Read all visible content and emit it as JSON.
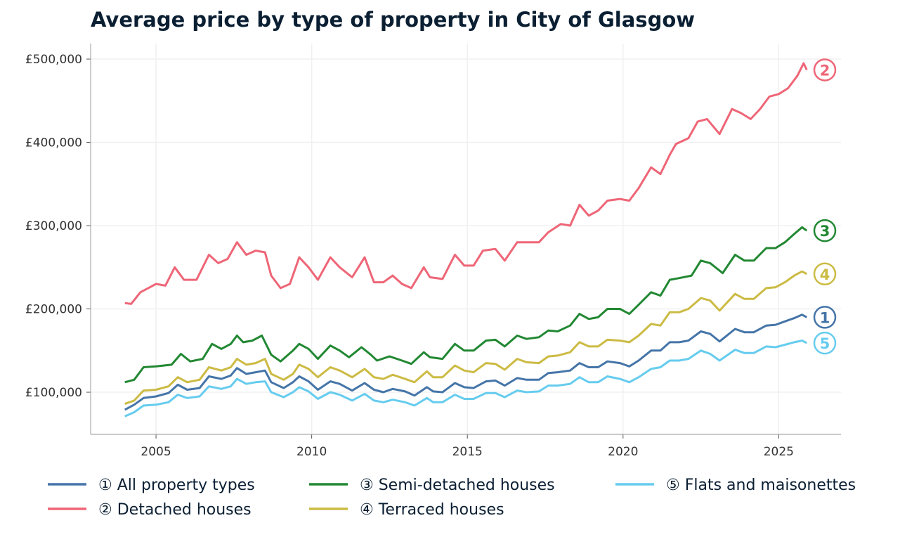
{
  "chart_data": {
    "type": "line",
    "title": "Average price by type of property in City of Glasgow",
    "xlabel": "",
    "ylabel": "",
    "xlim": [
      2002.9,
      2027.0
    ],
    "ylim": [
      49400,
      518600
    ],
    "x_ticks": [
      2005,
      2010,
      2015,
      2020,
      2025
    ],
    "x_tick_labels": [
      "2005",
      "2010",
      "2015",
      "2020",
      "2025"
    ],
    "y_ticks": [
      100000,
      200000,
      300000,
      400000,
      500000
    ],
    "y_tick_labels": [
      "£100,000",
      "£200,000",
      "£300,000",
      "£400,000",
      "£500,000"
    ],
    "grid": true,
    "legend_position": "bottom",
    "series": [
      {
        "name": "① All property types",
        "end_label": "1",
        "color": "#4575a8",
        "x": [
          2004,
          2004.3,
          2004.6,
          2005,
          2005.4,
          2005.7,
          2006,
          2006.4,
          2006.7,
          2007.1,
          2007.4,
          2007.6,
          2007.9,
          2008.2,
          2008.5,
          2008.7,
          2009.1,
          2009.4,
          2009.6,
          2009.9,
          2010.2,
          2010.6,
          2010.9,
          2011.3,
          2011.7,
          2012,
          2012.3,
          2012.6,
          2013,
          2013.3,
          2013.7,
          2013.9,
          2014.2,
          2014.6,
          2014.9,
          2015.2,
          2015.6,
          2015.9,
          2016.2,
          2016.6,
          2016.9,
          2017.3,
          2017.6,
          2017.9,
          2018.3,
          2018.6,
          2018.9,
          2019.2,
          2019.5,
          2019.9,
          2020.2,
          2020.5,
          2020.9,
          2021.2,
          2021.5,
          2021.8,
          2022.1,
          2022.5,
          2022.8,
          2023.1,
          2023.6,
          2023.9,
          2024.2,
          2024.6,
          2024.9,
          2025.2,
          2025.5,
          2025.75,
          2025.9
        ],
        "y": [
          79000,
          85000,
          93000,
          95000,
          99000,
          109000,
          103000,
          105000,
          119000,
          116000,
          120000,
          129000,
          122000,
          124000,
          126000,
          112000,
          105000,
          112000,
          119000,
          113000,
          103000,
          113000,
          110000,
          102000,
          111000,
          103000,
          100000,
          104000,
          101000,
          96000,
          106000,
          101000,
          100000,
          111000,
          106000,
          105000,
          113000,
          114000,
          108000,
          117000,
          115000,
          115000,
          123000,
          124000,
          126000,
          135000,
          130000,
          130000,
          137000,
          135000,
          131000,
          138000,
          150000,
          150000,
          160000,
          160000,
          162000,
          173000,
          170000,
          161000,
          176000,
          172000,
          172000,
          180000,
          181000,
          185000,
          189000,
          193000,
          190000
        ]
      },
      {
        "name": "② Detached houses",
        "end_label": "2",
        "color": "#ee6677",
        "x": [
          2004,
          2004.2,
          2004.5,
          2004.75,
          2005,
          2005.3,
          2005.6,
          2005.9,
          2006.3,
          2006.7,
          2007,
          2007.3,
          2007.6,
          2007.9,
          2008.2,
          2008.5,
          2008.7,
          2009,
          2009.3,
          2009.6,
          2009.9,
          2010.2,
          2010.6,
          2010.9,
          2011.3,
          2011.7,
          2012,
          2012.3,
          2012.6,
          2012.9,
          2013.2,
          2013.6,
          2013.8,
          2014.2,
          2014.6,
          2014.9,
          2015.2,
          2015.5,
          2015.9,
          2016.2,
          2016.6,
          2016.9,
          2017.3,
          2017.6,
          2018,
          2018.3,
          2018.6,
          2018.9,
          2019.2,
          2019.5,
          2019.9,
          2020.2,
          2020.5,
          2020.9,
          2021.2,
          2021.5,
          2021.7,
          2022.1,
          2022.4,
          2022.7,
          2023.1,
          2023.5,
          2023.8,
          2024.1,
          2024.4,
          2024.7,
          2025,
          2025.3,
          2025.6,
          2025.8,
          2025.9
        ],
        "y": [
          207000,
          206000,
          220000,
          225000,
          230000,
          228000,
          250000,
          235000,
          235000,
          265000,
          255000,
          260000,
          280000,
          265000,
          270000,
          268000,
          240000,
          225000,
          230000,
          262000,
          250000,
          235000,
          262000,
          250000,
          238000,
          262000,
          232000,
          232000,
          240000,
          230000,
          225000,
          250000,
          238000,
          236000,
          265000,
          252000,
          252000,
          270000,
          272000,
          258000,
          280000,
          280000,
          280000,
          292000,
          302000,
          300000,
          325000,
          312000,
          318000,
          330000,
          332000,
          330000,
          345000,
          370000,
          362000,
          385000,
          398000,
          405000,
          425000,
          428000,
          410000,
          440000,
          435000,
          428000,
          440000,
          455000,
          458000,
          465000,
          480000,
          495000,
          487000
        ]
      },
      {
        "name": "③ Semi-detached houses",
        "end_label": "3",
        "color": "#228833",
        "x": [
          2004,
          2004.3,
          2004.6,
          2005,
          2005.5,
          2005.8,
          2006.1,
          2006.5,
          2006.8,
          2007.1,
          2007.4,
          2007.6,
          2007.8,
          2008.1,
          2008.4,
          2008.7,
          2009,
          2009.4,
          2009.6,
          2009.9,
          2010.2,
          2010.6,
          2010.9,
          2011.2,
          2011.6,
          2011.9,
          2012.1,
          2012.5,
          2012.9,
          2013.2,
          2013.6,
          2013.8,
          2014.2,
          2014.6,
          2014.9,
          2015.2,
          2015.6,
          2015.9,
          2016.2,
          2016.6,
          2016.9,
          2017.3,
          2017.6,
          2017.9,
          2018.3,
          2018.6,
          2018.9,
          2019.2,
          2019.5,
          2019.9,
          2020.2,
          2020.5,
          2020.9,
          2021.2,
          2021.5,
          2021.8,
          2022.2,
          2022.5,
          2022.8,
          2023.2,
          2023.6,
          2023.9,
          2024.2,
          2024.6,
          2024.9,
          2025.2,
          2025.5,
          2025.75,
          2025.9
        ],
        "y": [
          112000,
          115000,
          130000,
          131000,
          133000,
          146000,
          137000,
          140000,
          158000,
          152000,
          158000,
          168000,
          160000,
          162000,
          168000,
          145000,
          137000,
          150000,
          158000,
          152000,
          140000,
          156000,
          150000,
          142000,
          154000,
          145000,
          138000,
          143000,
          138000,
          134000,
          148000,
          142000,
          140000,
          158000,
          150000,
          150000,
          162000,
          163000,
          155000,
          168000,
          164000,
          166000,
          174000,
          173000,
          180000,
          194000,
          188000,
          190000,
          200000,
          200000,
          194000,
          205000,
          220000,
          216000,
          235000,
          237000,
          240000,
          258000,
          255000,
          243000,
          265000,
          258000,
          258000,
          273000,
          273000,
          280000,
          290000,
          298000,
          294000
        ]
      },
      {
        "name": "④ Terraced houses",
        "end_label": "4",
        "color": "#ccbb44",
        "x": [
          2004,
          2004.3,
          2004.6,
          2005,
          2005.4,
          2005.7,
          2006,
          2006.4,
          2006.7,
          2007.1,
          2007.4,
          2007.6,
          2007.9,
          2008.2,
          2008.5,
          2008.7,
          2009.1,
          2009.4,
          2009.6,
          2009.9,
          2010.2,
          2010.6,
          2010.9,
          2011.3,
          2011.7,
          2012,
          2012.3,
          2012.6,
          2013,
          2013.3,
          2013.7,
          2013.9,
          2014.2,
          2014.6,
          2014.9,
          2015.2,
          2015.6,
          2015.9,
          2016.2,
          2016.6,
          2016.9,
          2017.3,
          2017.6,
          2017.9,
          2018.3,
          2018.6,
          2018.9,
          2019.2,
          2019.5,
          2019.9,
          2020.2,
          2020.5,
          2020.9,
          2021.2,
          2021.5,
          2021.8,
          2022.1,
          2022.5,
          2022.8,
          2023.1,
          2023.6,
          2023.9,
          2024.2,
          2024.6,
          2024.9,
          2025.2,
          2025.5,
          2025.75,
          2025.9
        ],
        "y": [
          86000,
          90000,
          102000,
          103000,
          107000,
          118000,
          112000,
          115000,
          130000,
          126000,
          130000,
          140000,
          133000,
          135000,
          140000,
          122000,
          115000,
          122000,
          133000,
          128000,
          118000,
          130000,
          126000,
          118000,
          128000,
          118000,
          116000,
          121000,
          116000,
          112000,
          125000,
          118000,
          118000,
          132000,
          126000,
          124000,
          135000,
          134000,
          127000,
          140000,
          136000,
          135000,
          143000,
          144000,
          148000,
          160000,
          155000,
          155000,
          163000,
          162000,
          160000,
          168000,
          182000,
          180000,
          196000,
          196000,
          200000,
          213000,
          210000,
          198000,
          218000,
          212000,
          212000,
          225000,
          226000,
          232000,
          240000,
          245000,
          242000
        ]
      },
      {
        "name": "⑤ Flats and maisonettes",
        "end_label": "5",
        "color": "#66ccee",
        "x": [
          2004,
          2004.3,
          2004.6,
          2005,
          2005.4,
          2005.7,
          2006,
          2006.4,
          2006.7,
          2007.1,
          2007.4,
          2007.6,
          2007.9,
          2008.2,
          2008.5,
          2008.7,
          2009.1,
          2009.4,
          2009.6,
          2009.9,
          2010.2,
          2010.6,
          2010.9,
          2011.3,
          2011.7,
          2012,
          2012.3,
          2012.6,
          2013,
          2013.3,
          2013.7,
          2013.9,
          2014.2,
          2014.6,
          2014.9,
          2015.2,
          2015.6,
          2015.9,
          2016.2,
          2016.6,
          2016.9,
          2017.3,
          2017.6,
          2017.9,
          2018.3,
          2018.6,
          2018.9,
          2019.2,
          2019.5,
          2019.9,
          2020.2,
          2020.5,
          2020.9,
          2021.2,
          2021.5,
          2021.8,
          2022.1,
          2022.5,
          2022.8,
          2023.1,
          2023.6,
          2023.9,
          2024.2,
          2024.6,
          2024.9,
          2025.2,
          2025.5,
          2025.75,
          2025.9
        ],
        "y": [
          71000,
          76000,
          84000,
          85000,
          88000,
          97000,
          93000,
          95000,
          107000,
          104000,
          107000,
          116000,
          110000,
          112000,
          113000,
          100000,
          94000,
          100000,
          106000,
          101000,
          92000,
          100000,
          97000,
          90000,
          98000,
          90000,
          88000,
          91000,
          88000,
          84000,
          93000,
          88000,
          88000,
          97000,
          92000,
          92000,
          99000,
          99000,
          94000,
          102000,
          100000,
          101000,
          108000,
          108000,
          110000,
          118000,
          112000,
          112000,
          119000,
          116000,
          112000,
          118000,
          128000,
          130000,
          138000,
          138000,
          140000,
          150000,
          146000,
          138000,
          151000,
          147000,
          147000,
          155000,
          154000,
          157000,
          160000,
          162000,
          159000
        ]
      }
    ]
  }
}
